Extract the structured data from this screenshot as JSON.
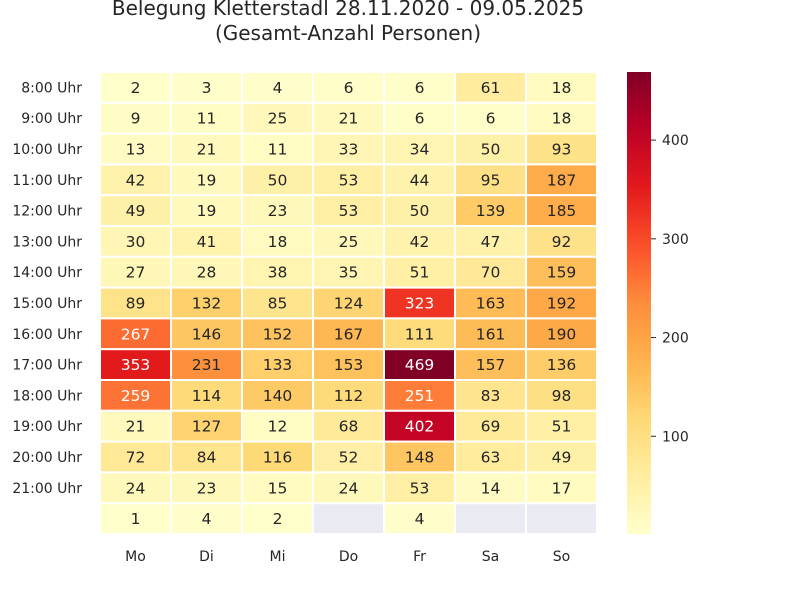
{
  "chart_data": {
    "type": "heatmap",
    "title": "Belegung Kletterstadl 28.11.2020 - 09.05.2025",
    "subtitle": "(Gesamt-Anzahl Personen)",
    "x_categories": [
      "Mo",
      "Di",
      "Mi",
      "Do",
      "Fr",
      "Sa",
      "So"
    ],
    "y_categories": [
      "8:00 Uhr",
      "9:00 Uhr",
      "10:00 Uhr",
      "11:00 Uhr",
      "12:00 Uhr",
      "13:00 Uhr",
      "14:00 Uhr",
      "15:00 Uhr",
      "16:00 Uhr",
      "17:00 Uhr",
      "18:00 Uhr",
      "19:00 Uhr",
      "20:00 Uhr",
      "21:00 Uhr",
      ""
    ],
    "values": [
      [
        2,
        3,
        4,
        6,
        6,
        61,
        18
      ],
      [
        9,
        11,
        25,
        21,
        6,
        6,
        18
      ],
      [
        13,
        21,
        11,
        33,
        34,
        50,
        93
      ],
      [
        42,
        19,
        50,
        53,
        44,
        95,
        187
      ],
      [
        49,
        19,
        23,
        53,
        50,
        139,
        185
      ],
      [
        30,
        41,
        18,
        25,
        42,
        47,
        92
      ],
      [
        27,
        28,
        38,
        35,
        51,
        70,
        159
      ],
      [
        89,
        132,
        85,
        124,
        323,
        163,
        192
      ],
      [
        267,
        146,
        152,
        167,
        111,
        161,
        190
      ],
      [
        353,
        231,
        133,
        153,
        469,
        157,
        136
      ],
      [
        259,
        114,
        140,
        112,
        251,
        83,
        98
      ],
      [
        21,
        127,
        12,
        68,
        402,
        69,
        51
      ],
      [
        72,
        84,
        116,
        52,
        148,
        63,
        49
      ],
      [
        24,
        23,
        15,
        24,
        53,
        14,
        17
      ],
      [
        1,
        4,
        2,
        null,
        4,
        null,
        null
      ]
    ],
    "color_scale": "YlOrRd",
    "vmin": 1,
    "vmax": 469,
    "colorbar_ticks": [
      100,
      200,
      300,
      400
    ],
    "missing_color": "#eaeaf2",
    "cell_border_color": "#ffffff"
  }
}
